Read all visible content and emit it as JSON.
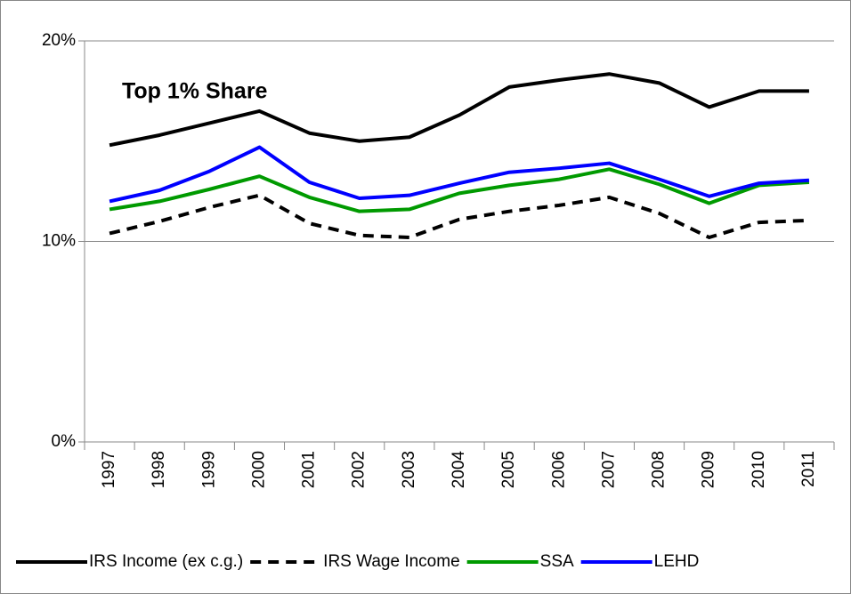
{
  "chart_data": {
    "type": "line",
    "annotation": "Top 1% Share",
    "categories": [
      "1997",
      "1998",
      "1999",
      "2000",
      "2001",
      "2002",
      "2003",
      "2004",
      "2005",
      "2006",
      "2007",
      "2008",
      "2009",
      "2010",
      "2011"
    ],
    "series": [
      {
        "name": "IRS Income (ex c.g.)",
        "color": "#000000",
        "dash": false,
        "values": [
          14.8,
          15.3,
          15.9,
          16.5,
          15.4,
          15.0,
          15.2,
          16.3,
          17.7,
          18.05,
          18.35,
          17.9,
          16.7,
          17.5,
          17.5
        ]
      },
      {
        "name": "IRS Wage Income",
        "color": "#000000",
        "dash": true,
        "values": [
          10.4,
          11.0,
          11.7,
          12.3,
          10.9,
          10.3,
          10.2,
          11.1,
          11.5,
          11.8,
          12.2,
          11.4,
          10.2,
          10.95,
          11.05
        ]
      },
      {
        "name": "SSA",
        "color": "#009a00",
        "dash": false,
        "values": [
          11.6,
          12.0,
          12.6,
          13.25,
          12.2,
          11.5,
          11.6,
          12.4,
          12.8,
          13.1,
          13.6,
          12.85,
          11.9,
          12.8,
          12.95
        ]
      },
      {
        "name": "LEHD",
        "color": "#0000ff",
        "dash": false,
        "values": [
          12.0,
          12.55,
          13.5,
          14.7,
          12.95,
          12.15,
          12.3,
          12.9,
          13.45,
          13.65,
          13.9,
          13.1,
          12.25,
          12.9,
          13.05
        ]
      }
    ],
    "ylim": [
      0,
      20
    ],
    "yticks": [
      {
        "value": 0,
        "label": "0%"
      },
      {
        "value": 10,
        "label": "10%"
      },
      {
        "value": 20,
        "label": "20%"
      }
    ],
    "grid": true,
    "legend": "bottom"
  }
}
